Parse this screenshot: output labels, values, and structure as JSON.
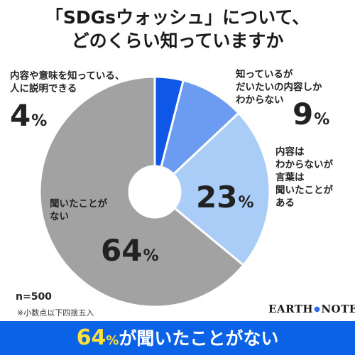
{
  "title_lines": [
    "「SDGsウォッシュ」について、",
    "どのくらい知っていますか"
  ],
  "chart_data": {
    "type": "pie",
    "title": "「SDGsウォッシュ」について、どのくらい知っていますか",
    "unit": "%",
    "start": "12 o'clock, clockwise",
    "slices": [
      {
        "label_lines": [
          "内容や意味を知っている、",
          "人に説明できる"
        ],
        "value": 4,
        "color": "#0f57e6"
      },
      {
        "label_lines": [
          "知っているが",
          "だいたいの内容しか",
          "わからない"
        ],
        "value": 9,
        "color": "#6b9cf2"
      },
      {
        "label_lines": [
          "内容は",
          "わからないが",
          "言葉は",
          "聞いたことが",
          "ある"
        ],
        "value": 23,
        "color": "#a9cdf7"
      },
      {
        "label_lines": [
          "聞いたことが",
          "ない"
        ],
        "value": 64,
        "color": "#a2a2a2"
      }
    ]
  },
  "notes": {
    "sample": "n=500",
    "rounding": "※小数点以下四捨五入"
  },
  "brand": {
    "left": "EARTH",
    "right": "NOTE"
  },
  "banner": {
    "num": "64",
    "unit": "%",
    "text": "が聞いたことがない"
  },
  "colors": {
    "banner_bg": "#0a63e6",
    "banner_highlight": "#ffe03a"
  }
}
